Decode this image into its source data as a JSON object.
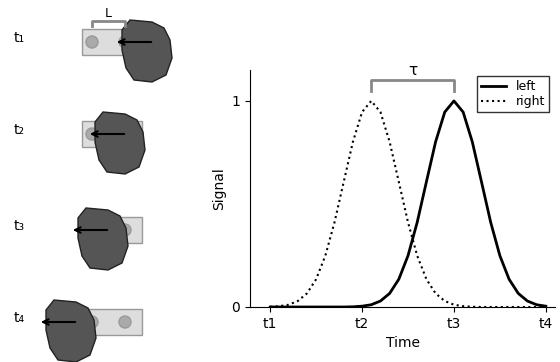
{
  "chart_data": {
    "type": "line",
    "x": [
      1.0,
      1.1,
      1.2,
      1.3,
      1.4,
      1.5,
      1.6,
      1.7,
      1.8,
      1.9,
      2.0,
      2.1,
      2.2,
      2.3,
      2.4,
      2.5,
      2.6,
      2.7,
      2.8,
      2.9,
      3.0,
      3.1,
      3.2,
      3.3,
      3.4,
      3.5,
      3.6,
      3.7,
      3.8,
      3.9,
      4.0
    ],
    "series": [
      {
        "name": "left",
        "color": "#000000",
        "line_style": "solid",
        "values": [
          0,
          0,
          0,
          0,
          0,
          0,
          0,
          0,
          0,
          0.001,
          0.004,
          0.011,
          0.029,
          0.066,
          0.135,
          0.249,
          0.411,
          0.607,
          0.801,
          0.946,
          1,
          0.946,
          0.801,
          0.607,
          0.411,
          0.249,
          0.135,
          0.066,
          0.029,
          0.011,
          0.004
        ]
      },
      {
        "name": "right",
        "color": "#000000",
        "line_style": "dotted",
        "values": [
          0.001,
          0.004,
          0.011,
          0.029,
          0.066,
          0.135,
          0.249,
          0.411,
          0.607,
          0.801,
          0.946,
          1,
          0.946,
          0.801,
          0.607,
          0.411,
          0.249,
          0.135,
          0.066,
          0.029,
          0.011,
          0.004,
          0.001,
          0,
          0,
          0,
          0,
          0,
          0,
          0,
          0
        ]
      }
    ],
    "x_label": "Time",
    "y_label": "Signal",
    "xlim": [
      0.78,
      4.1
    ],
    "ylim": [
      0,
      1.15
    ],
    "xticks": [
      {
        "value": 1,
        "label": "t1"
      },
      {
        "value": 2,
        "label": "t2"
      },
      {
        "value": 3,
        "label": "t3"
      },
      {
        "value": 4,
        "label": "t4"
      }
    ],
    "yticks": [
      0,
      1
    ],
    "legend": "upper right",
    "annotations": [
      {
        "text": "τ"
      }
    ]
  },
  "diagram": {
    "panel_labels": [
      "t₁",
      "t₂",
      "t₃",
      "t₄"
    ],
    "spacing_label": "L"
  }
}
